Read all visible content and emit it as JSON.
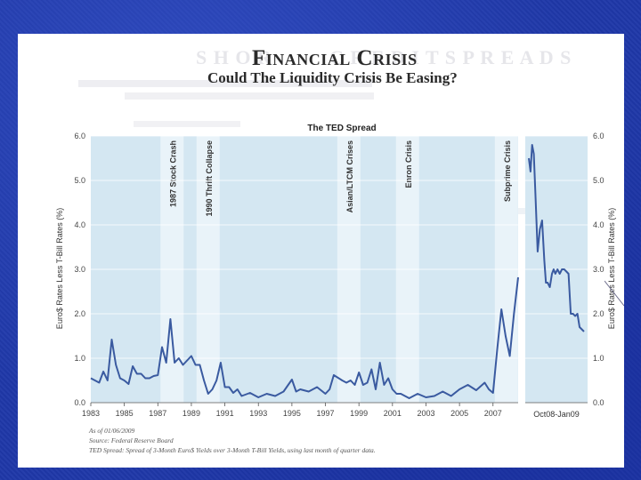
{
  "slide": {
    "title": "Financial Crisis",
    "subtitle": "Could The Liquidity Crisis Be Easing?"
  },
  "chart_data": {
    "type": "line",
    "title": "The TED Spread",
    "ylabel": "Euro$ Rates Less T-Bill Rates (%)",
    "ylim": [
      0,
      6
    ],
    "yticks": [
      "0.0",
      "1.0",
      "2.0",
      "3.0",
      "4.0",
      "5.0",
      "6.0"
    ],
    "grid": true,
    "main_panel": {
      "xlim": [
        1983,
        2008.5
      ],
      "xticks": [
        "1983",
        "1985",
        "1987",
        "1989",
        "1991",
        "1993",
        "1995",
        "1997",
        "1999",
        "2001",
        "2003",
        "2005",
        "2007"
      ],
      "annotations": [
        {
          "label": "1987 Stock Crash",
          "x": 1987.85
        },
        {
          "label": "1990 Thrift Collapse",
          "x": 1990.0
        },
        {
          "label": "Asian/LTCM Crises",
          "x": 1998.4
        },
        {
          "label": "Enron Crisis",
          "x": 2001.9
        },
        {
          "label": "Subprime Crisis",
          "x": 2007.8
        }
      ],
      "series": [
        {
          "x": [
            1983.0,
            1983.25,
            1983.5,
            1983.75,
            1984.0,
            1984.25,
            1984.5,
            1984.75,
            1985.0,
            1985.25,
            1985.5,
            1985.75,
            1986.0,
            1986.25,
            1986.5,
            1986.75,
            1987.0,
            1987.25,
            1987.5,
            1987.75,
            1988.0,
            1988.25,
            1988.5,
            1988.75,
            1989.0,
            1989.25,
            1989.5,
            1989.75,
            1990.0,
            1990.25,
            1990.5,
            1990.75,
            1991.0,
            1991.25,
            1991.5,
            1991.75,
            1992.0,
            1992.5,
            1993.0,
            1993.5,
            1994.0,
            1994.5,
            1995.0,
            1995.25,
            1995.5,
            1996.0,
            1996.5,
            1997.0,
            1997.25,
            1997.5,
            1998.0,
            1998.25,
            1998.5,
            1998.75,
            1999.0,
            1999.25,
            1999.5,
            1999.75,
            2000.0,
            2000.25,
            2000.5,
            2000.75,
            2001.0,
            2001.25,
            2001.5,
            2001.75,
            2002.0,
            2002.5,
            2003.0,
            2003.5,
            2004.0,
            2004.5,
            2005.0,
            2005.5,
            2006.0,
            2006.5,
            2006.75,
            2007.0,
            2007.25,
            2007.5,
            2007.75,
            2008.0,
            2008.25,
            2008.5
          ],
          "y": [
            0.55,
            0.5,
            0.45,
            0.7,
            0.5,
            1.42,
            0.85,
            0.55,
            0.5,
            0.42,
            0.82,
            0.65,
            0.65,
            0.55,
            0.55,
            0.6,
            0.62,
            1.25,
            0.9,
            1.88,
            0.9,
            1.0,
            0.85,
            0.95,
            1.05,
            0.85,
            0.85,
            0.5,
            0.2,
            0.3,
            0.5,
            0.9,
            0.35,
            0.35,
            0.22,
            0.3,
            0.15,
            0.22,
            0.12,
            0.2,
            0.15,
            0.25,
            0.52,
            0.25,
            0.3,
            0.25,
            0.35,
            0.2,
            0.3,
            0.62,
            0.5,
            0.45,
            0.5,
            0.4,
            0.68,
            0.4,
            0.45,
            0.75,
            0.3,
            0.9,
            0.4,
            0.55,
            0.3,
            0.2,
            0.2,
            0.15,
            0.1,
            0.2,
            0.12,
            0.15,
            0.25,
            0.15,
            0.3,
            0.4,
            0.28,
            0.45,
            0.3,
            0.22,
            1.2,
            2.1,
            1.5,
            1.05,
            2.0,
            2.82
          ]
        }
      ]
    },
    "inset_panel": {
      "xlabel": "Oct08-Jan09",
      "series": [
        {
          "x": [
            0,
            0.03,
            0.06,
            0.09,
            0.12,
            0.16,
            0.2,
            0.24,
            0.28,
            0.31,
            0.34,
            0.38,
            0.42,
            0.45,
            0.48,
            0.52,
            0.56,
            0.6,
            0.64,
            0.68,
            0.72,
            0.76,
            0.8,
            0.84,
            0.88,
            0.92,
            0.96,
            1.0
          ],
          "y": [
            5.5,
            5.2,
            5.8,
            5.6,
            4.7,
            3.4,
            3.9,
            4.1,
            3.2,
            2.7,
            2.7,
            2.6,
            2.9,
            3.0,
            2.9,
            3.0,
            2.9,
            3.0,
            3.0,
            2.95,
            2.9,
            2.0,
            2.0,
            1.95,
            2.0,
            1.7,
            1.65,
            1.6
          ]
        }
      ]
    },
    "notes": [
      "As of 01/06/2009",
      "Source: Federal Reserve Board",
      "TED Spread: Spread of 3-Month Euro$ Yields over 3-Month T-Bill Yields, using last month of quarter data."
    ]
  },
  "colors": {
    "slide_bg": "#1f38a8",
    "plot_bg": "#d4e7f2",
    "band": "#e9f3f9",
    "line": "#3a5aa0",
    "text": "#2a2a2a"
  }
}
